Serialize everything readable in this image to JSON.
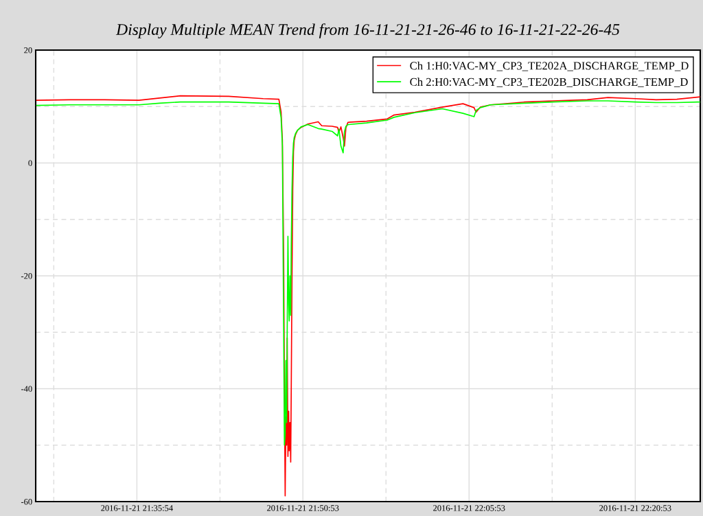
{
  "chart_data": {
    "type": "line",
    "title": "Display Multiple MEAN Trend from 16-11-21-21-26-46 to 16-11-21-22-26-45",
    "x": [
      "2016-11-21T21:26:52",
      "2016-11-21T21:29:52",
      "2016-11-21T21:32:59",
      "2016-11-21T21:36:05",
      "2016-11-21T21:37:57",
      "2016-11-21T21:39:49",
      "2016-11-21T21:44:11",
      "2016-11-21T21:47:18",
      "2016-11-21T21:48:43",
      "2016-11-21T21:48:55",
      "2016-11-21T21:49:02",
      "2016-11-21T21:49:09",
      "2016-11-21T21:49:13",
      "2016-11-21T21:49:17",
      "2016-11-21T21:49:21",
      "2016-11-21T21:49:25",
      "2016-11-21T21:49:28",
      "2016-11-21T21:49:32",
      "2016-11-21T21:49:36",
      "2016-11-21T21:49:39",
      "2016-11-21T21:49:43",
      "2016-11-21T21:49:47",
      "2016-11-21T21:49:50",
      "2016-11-21T21:49:54",
      "2016-11-21T21:49:58",
      "2016-11-21T21:50:02",
      "2016-11-21T21:50:06",
      "2016-11-21T21:50:13",
      "2016-11-21T21:50:24",
      "2016-11-21T21:50:43",
      "2016-11-21T21:51:20",
      "2016-11-21T21:52:16",
      "2016-11-21T21:52:35",
      "2016-11-21T21:53:31",
      "2016-11-21T21:54:01",
      "2016-11-21T21:54:08",
      "2016-11-21T21:54:19",
      "2016-11-21T21:54:31",
      "2016-11-21T21:54:38",
      "2016-11-21T21:54:46",
      "2016-11-21T21:54:57",
      "2016-11-21T21:56:38",
      "2016-11-21T21:58:30",
      "2016-11-21T21:59:07",
      "2016-11-21T22:00:59",
      "2016-11-21T22:03:28",
      "2016-11-21T22:05:20",
      "2016-11-21T22:06:20",
      "2016-11-21T22:06:31",
      "2016-11-21T22:06:54",
      "2016-11-21T22:07:50",
      "2016-11-21T22:10:57",
      "2016-11-21T22:13:26",
      "2016-11-21T22:16:33",
      "2016-11-21T22:18:25",
      "2016-11-21T22:20:54",
      "2016-11-21T22:22:46",
      "2016-11-21T22:24:38",
      "2016-11-21T22:26:41"
    ],
    "series": [
      {
        "name": "Ch 1:H0:VAC-MY_CP3_TE202A_DISCHARGE_TEMP_D",
        "color": "#ff0000",
        "values": [
          11.1,
          11.2,
          11.2,
          11.1,
          11.5,
          11.9,
          11.8,
          11.4,
          11.3,
          9,
          4,
          -17,
          -40,
          -59,
          -45,
          -50,
          -31,
          -52,
          -44,
          -51,
          -46,
          -53,
          -40,
          -20,
          -5,
          2,
          4,
          5,
          5.8,
          6.3,
          6.9,
          7.3,
          6.6,
          6.5,
          6.3,
          5.4,
          6.4,
          4.5,
          3,
          6.2,
          7.2,
          7.4,
          7.8,
          8.5,
          9.0,
          9.9,
          10.5,
          9.8,
          9.0,
          9.9,
          10.3,
          10.8,
          11.0,
          11.2,
          11.6,
          11.4,
          11.2,
          11.3,
          11.7
        ]
      },
      {
        "name": "Ch 2:H0:VAC-MY_CP3_TE202B_DISCHARGE_TEMP_D",
        "color": "#00ff00",
        "values": [
          10.2,
          10.3,
          10.3,
          10.3,
          10.6,
          10.8,
          10.8,
          10.6,
          10.5,
          8,
          3,
          -30,
          -50,
          -48,
          -35,
          -46,
          -30,
          -13,
          -25,
          -28,
          -20,
          -27,
          -15,
          -5,
          1,
          3.5,
          4.5,
          5.2,
          5.8,
          6.4,
          6.8,
          6.1,
          6.0,
          5.6,
          4.8,
          6.0,
          3,
          1.8,
          5.5,
          6.5,
          6.8,
          7.1,
          7.6,
          8.1,
          8.9,
          9.6,
          8.8,
          8.2,
          9.3,
          9.8,
          10.3,
          10.6,
          10.8,
          11.0,
          11.0,
          10.8,
          10.7,
          10.7,
          10.8
        ]
      }
    ],
    "xlim": [
      "2016-11-21T21:26:46",
      "2016-11-21T22:26:45"
    ],
    "xticks": [
      {
        "value": "2016-11-21T21:28:24",
        "label": null
      },
      {
        "value": "2016-11-21T21:35:54",
        "label": "2016-11-21 21:35:54"
      },
      {
        "value": "2016-11-21T21:43:24",
        "label": null
      },
      {
        "value": "2016-11-21T21:50:53",
        "label": "2016-11-21 21:50:53"
      },
      {
        "value": "2016-11-21T21:58:23",
        "label": null
      },
      {
        "value": "2016-11-21T22:05:53",
        "label": "2016-11-21 22:05:53"
      },
      {
        "value": "2016-11-21T22:13:23",
        "label": null
      },
      {
        "value": "2016-11-21T22:20:53",
        "label": "2016-11-21 22:20:53"
      }
    ],
    "ylim": [
      -60,
      20
    ],
    "yticks": [
      -60,
      {
        "value": -50,
        "label": null
      },
      -40,
      {
        "value": -30,
        "label": null
      },
      -20,
      {
        "value": -10,
        "label": null
      },
      0,
      {
        "value": 10,
        "label": null
      },
      20
    ],
    "grid": true,
    "legend": "top right",
    "line_style": "solid",
    "marker": "none"
  }
}
